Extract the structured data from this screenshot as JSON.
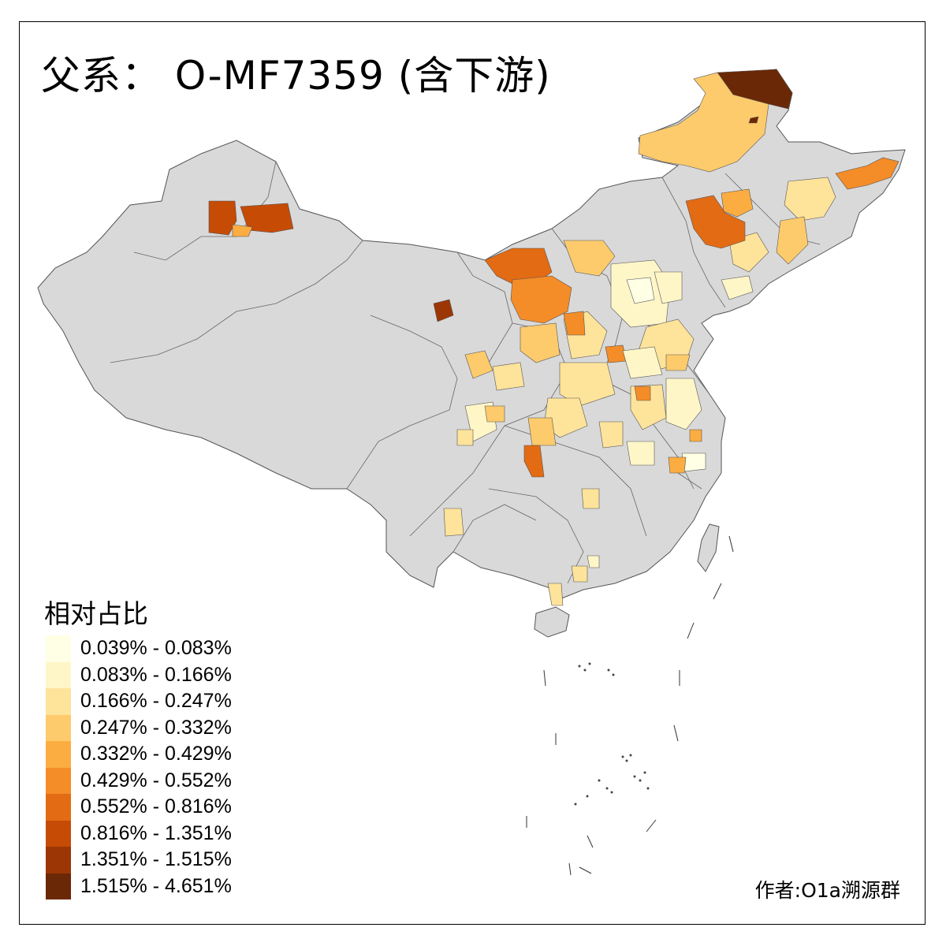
{
  "title": "父系： O-MF7359 (含下游)",
  "legend": {
    "title": "相对占比",
    "items": [
      {
        "label": "0.039% - 0.083%",
        "color": "#ffffe5"
      },
      {
        "label": "0.083% - 0.166%",
        "color": "#fff6c8"
      },
      {
        "label": "0.166% - 0.247%",
        "color": "#fee39b"
      },
      {
        "label": "0.247% - 0.332%",
        "color": "#fdcb6c"
      },
      {
        "label": "0.332% - 0.429%",
        "color": "#fcad41"
      },
      {
        "label": "0.429% - 0.552%",
        "color": "#f48c28"
      },
      {
        "label": "0.552% - 0.816%",
        "color": "#e36b14"
      },
      {
        "label": "0.816% - 1.351%",
        "color": "#c64b05"
      },
      {
        "label": "1.351% - 1.515%",
        "color": "#9c3604"
      },
      {
        "label": "1.515% - 4.651%",
        "color": "#6b2806"
      }
    ]
  },
  "credit": "作者:O1a溯源群",
  "colors": {
    "base_region": "#d9d9d9",
    "border": "#555555"
  }
}
